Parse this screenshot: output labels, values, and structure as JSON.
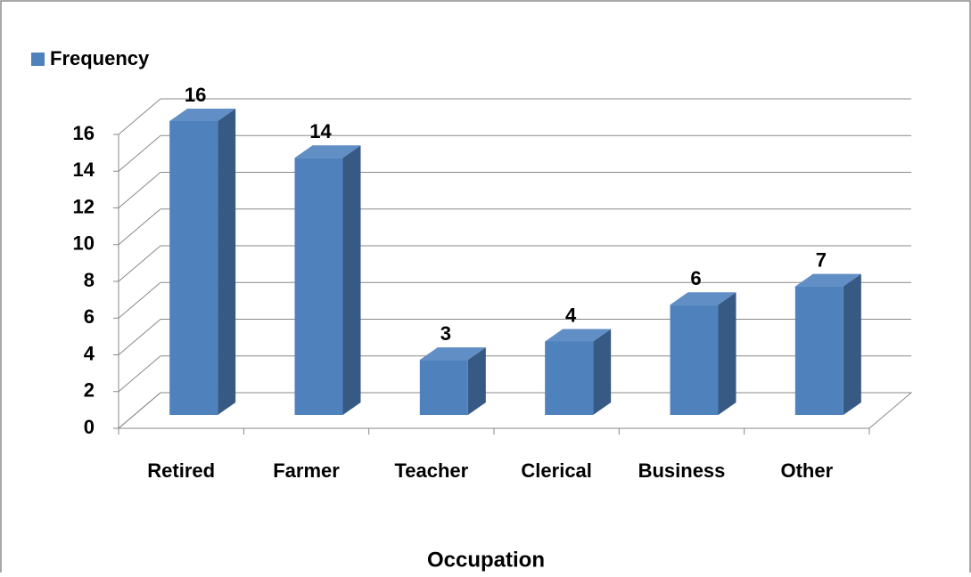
{
  "chart_data": {
    "type": "bar3d",
    "x_label": "Occupation",
    "categories": [
      "Retired",
      "Farmer",
      "Teacher",
      "Clerical",
      "Business",
      "Other"
    ],
    "series": [
      {
        "name": "Frequency",
        "color": "#4f81bd",
        "values": [
          16,
          14,
          3,
          4,
          6,
          7
        ]
      }
    ],
    "ylim": [
      0,
      16
    ],
    "yticks": [
      0,
      2,
      4,
      6,
      8,
      10,
      12,
      14,
      16
    ],
    "grid": true,
    "legend_position": "top-left",
    "data_labels": true
  }
}
